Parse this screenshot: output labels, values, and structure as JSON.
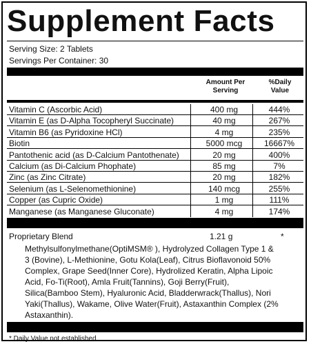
{
  "title": "Supplement Facts",
  "serving_size": "Serving Size: 2 Tablets",
  "servings_per_container": "Servings Per Container: 30",
  "header": {
    "amount_line1": "Amount Per",
    "amount_line2": "Serving",
    "dv_line1": "%Daily",
    "dv_line2": "Value"
  },
  "nutrients": [
    {
      "name": "Vitamin C (Ascorbic Acid)",
      "amount": "400 mg",
      "dv": "444%"
    },
    {
      "name": "Vitamin E (as D-Alpha Tocopheryl Succinate)",
      "amount": "40 mg",
      "dv": "267%"
    },
    {
      "name": "Vitamin B6 (as Pyridoxine HCl)",
      "amount": "4 mg",
      "dv": "235%"
    },
    {
      "name": "Biotin",
      "amount": "5000 mcg",
      "dv": "16667%"
    },
    {
      "name": "Pantothenic acid (as D-Calcium Pantothenate)",
      "amount": "20 mg",
      "dv": "400%"
    },
    {
      "name": "Calcium (as Di-Calcium Phophate)",
      "amount": "85 mg",
      "dv": "7%"
    },
    {
      "name": "Zinc (as Zinc Citrate)",
      "amount": "20 mg",
      "dv": "182%"
    },
    {
      "name": "Selenium (as L-Selenomethionine)",
      "amount": "140 mcg",
      "dv": "255%"
    },
    {
      "name": "Copper (as Cupric Oxide)",
      "amount": "1 mg",
      "dv": "111%"
    },
    {
      "name": "Manganese (as Manganese Gluconate)",
      "amount": "4 mg",
      "dv": "174%"
    }
  ],
  "blend": {
    "name": "Proprietary Blend",
    "amount": "1.21 g",
    "dv": "*",
    "ingredients": "Methylsulfonylmethane(OptiMSM® ), Hydrolyzed Collagen Type 1 & 3 (Bovine), L-Methionine, Gotu Kola(Leaf), Citrus Bioflavonoid 50% Complex, Grape Seed(Inner Core), Hydrolized Keratin, Alpha Lipoic Acid, Fo-Ti(Root), Amla Fruit(Tannins), Goji Berry(Fruit), Silica(Bamboo Stem), Hyaluronic Acid, Bladderwrack(Thallus), Nori Yaki(Thallus), Wakame, Olive Water(Fruit), Astaxanthin Complex (2% Astaxanthin)."
  },
  "footnote": "* Daily Value not established."
}
